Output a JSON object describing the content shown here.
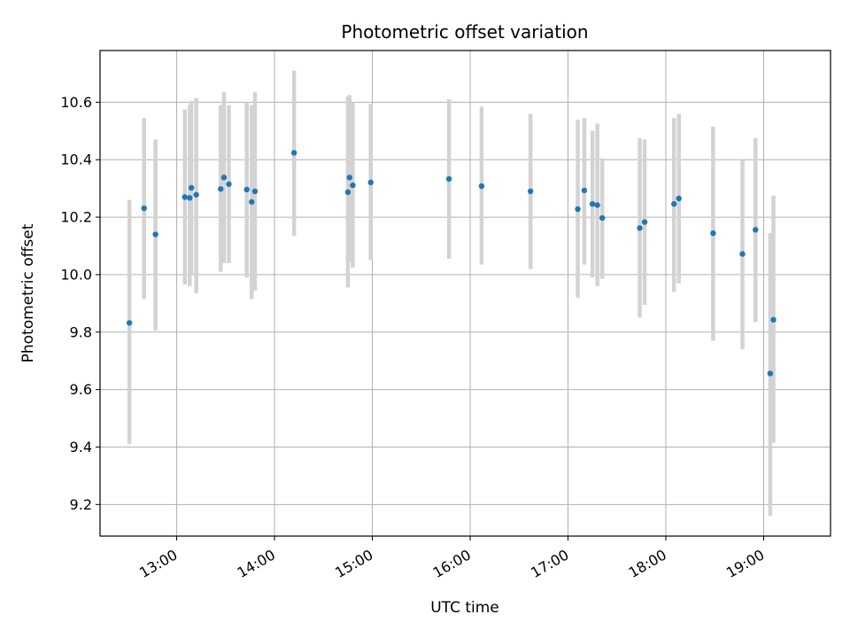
{
  "chart_data": {
    "type": "scatter",
    "title": "Photometric offset variation",
    "xlabel": "UTC time",
    "ylabel": "Photometric offset",
    "x_tick_labels": [
      "13:00",
      "14:00",
      "15:00",
      "16:00",
      "17:00",
      "18:00",
      "19:00"
    ],
    "x_tick_hours": [
      13,
      14,
      15,
      16,
      17,
      18,
      19
    ],
    "xlim": [
      "12:13",
      "19:41"
    ],
    "y_ticks": [
      9.2,
      9.4,
      9.6,
      9.8,
      10.0,
      10.2,
      10.4,
      10.6
    ],
    "ylim": [
      9.09,
      10.78
    ],
    "grid": true,
    "marker_color": "#1f77b4",
    "errorbar_color": "#d3d3d3",
    "points": [
      {
        "t": "12:31",
        "y": 9.832,
        "lo": 9.41,
        "hi": 10.26
      },
      {
        "t": "12:40",
        "y": 10.231,
        "lo": 9.915,
        "hi": 10.545
      },
      {
        "t": "12:47",
        "y": 10.14,
        "lo": 9.805,
        "hi": 10.47
      },
      {
        "t": "13:05",
        "y": 10.27,
        "lo": 9.965,
        "hi": 10.575
      },
      {
        "t": "13:08",
        "y": 10.267,
        "lo": 9.96,
        "hi": 10.59
      },
      {
        "t": "13:09",
        "y": 10.302,
        "lo": 10.0,
        "hi": 10.605
      },
      {
        "t": "13:12",
        "y": 10.278,
        "lo": 9.935,
        "hi": 10.615
      },
      {
        "t": "13:27",
        "y": 10.298,
        "lo": 10.01,
        "hi": 10.59
      },
      {
        "t": "13:29",
        "y": 10.338,
        "lo": 10.04,
        "hi": 10.635
      },
      {
        "t": "13:32",
        "y": 10.315,
        "lo": 10.04,
        "hi": 10.59
      },
      {
        "t": "13:43",
        "y": 10.296,
        "lo": 9.99,
        "hi": 10.6
      },
      {
        "t": "13:46",
        "y": 10.253,
        "lo": 9.915,
        "hi": 10.59
      },
      {
        "t": "13:48",
        "y": 10.29,
        "lo": 9.945,
        "hi": 10.635
      },
      {
        "t": "14:12",
        "y": 10.424,
        "lo": 10.135,
        "hi": 10.71
      },
      {
        "t": "14:45",
        "y": 10.287,
        "lo": 9.955,
        "hi": 10.62
      },
      {
        "t": "14:46",
        "y": 10.338,
        "lo": 10.045,
        "hi": 10.625
      },
      {
        "t": "14:48",
        "y": 10.311,
        "lo": 10.025,
        "hi": 10.6
      },
      {
        "t": "14:59",
        "y": 10.321,
        "lo": 10.05,
        "hi": 10.595
      },
      {
        "t": "15:47",
        "y": 10.333,
        "lo": 10.055,
        "hi": 10.61
      },
      {
        "t": "16:07",
        "y": 10.308,
        "lo": 10.035,
        "hi": 10.585
      },
      {
        "t": "16:37",
        "y": 10.29,
        "lo": 10.02,
        "hi": 10.56
      },
      {
        "t": "17:06",
        "y": 10.228,
        "lo": 9.92,
        "hi": 10.54
      },
      {
        "t": "17:10",
        "y": 10.293,
        "lo": 10.035,
        "hi": 10.545
      },
      {
        "t": "17:15",
        "y": 10.246,
        "lo": 9.99,
        "hi": 10.5
      },
      {
        "t": "17:18",
        "y": 10.242,
        "lo": 9.96,
        "hi": 10.525
      },
      {
        "t": "17:21",
        "y": 10.197,
        "lo": 9.985,
        "hi": 10.405
      },
      {
        "t": "17:44",
        "y": 10.162,
        "lo": 9.85,
        "hi": 10.475
      },
      {
        "t": "17:47",
        "y": 10.183,
        "lo": 9.895,
        "hi": 10.47
      },
      {
        "t": "18:05",
        "y": 10.246,
        "lo": 9.94,
        "hi": 10.545
      },
      {
        "t": "18:08",
        "y": 10.265,
        "lo": 9.97,
        "hi": 10.56
      },
      {
        "t": "18:29",
        "y": 10.144,
        "lo": 9.77,
        "hi": 10.515
      },
      {
        "t": "18:47",
        "y": 10.072,
        "lo": 9.74,
        "hi": 10.4
      },
      {
        "t": "18:55",
        "y": 10.156,
        "lo": 9.835,
        "hi": 10.475
      },
      {
        "t": "19:04",
        "y": 9.656,
        "lo": 9.16,
        "hi": 10.145
      },
      {
        "t": "19:06",
        "y": 9.843,
        "lo": 9.415,
        "hi": 10.275
      }
    ]
  }
}
